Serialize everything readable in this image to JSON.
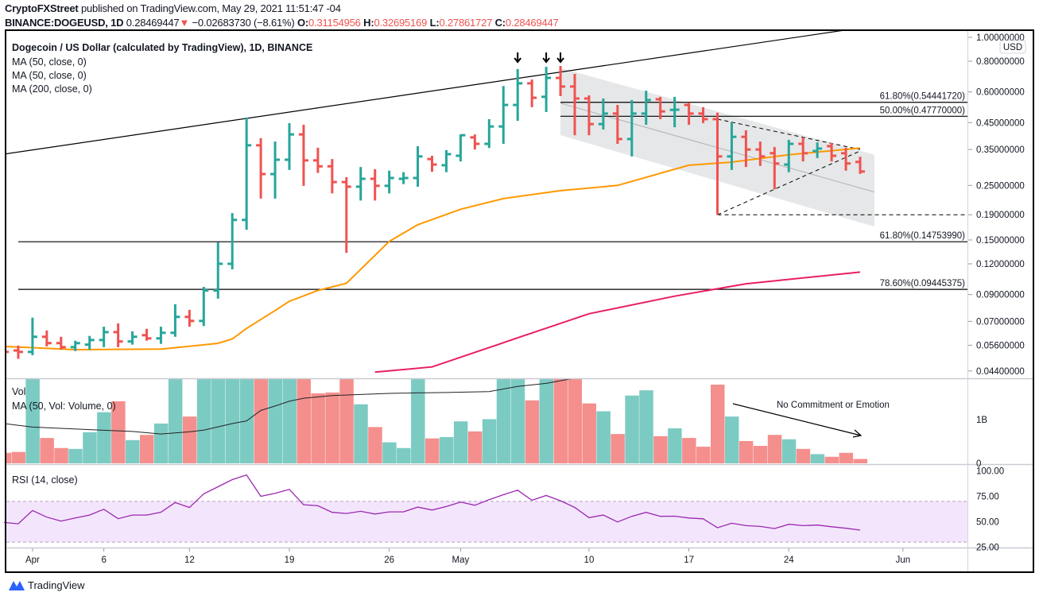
{
  "header": {
    "publisher": "CryptoFXStreet",
    "published_text": " published on TradingView.com, May 29, 2021 11:51:47 -04",
    "symbol": "BINANCE:DOGEUSD, 1D",
    "last": "0.28469447",
    "change": "−0.02683730 (−8.61%)",
    "o_label": "O:",
    "o": "0.31154956",
    "h_label": "H:",
    "h": "0.32695169",
    "l_label": "L:",
    "l": "0.27861727",
    "c_label": "C:",
    "c": "0.28469447"
  },
  "legend": {
    "title": "Dogecoin / US Dollar (calculated by TradingView), 1D, BINANCE",
    "ma1": "MA (50, close, 0)",
    "ma2": "MA (50, close, 0)",
    "ma3": "MA (200, close, 0)",
    "vol": "Vol",
    "vol_ma": "MA (50, Vol: Volume, 0)",
    "rsi": "RSI (14, close)"
  },
  "currency_badge": "USD",
  "annotation": "No Commitment or Emotion",
  "footer": {
    "brand": "TradingView"
  },
  "colors": {
    "up": "#26a69a",
    "down": "#ef5350",
    "vol_up": "#7ccbc3",
    "vol_down": "#f48f8d",
    "ma50": "#ff9800",
    "ma200": "#e91e63",
    "rsi": "#9c27b0",
    "channel": "#e3e4e6"
  },
  "chart_data": {
    "type": "ohlc",
    "price_scale": "log",
    "price_ticks": [
      "1.00000000",
      "0.80000000",
      "0.60000000",
      "0.45000000",
      "0.35000000",
      "0.25000000",
      "0.19000000",
      "0.15000000",
      "0.12000000",
      "0.09000000",
      "0.07000000",
      "0.05600000",
      "0.04400000"
    ],
    "x_ticks": [
      [
        "2021-04-01",
        "Apr"
      ],
      [
        "2021-04-06",
        "6"
      ],
      [
        "2021-04-12",
        "12"
      ],
      [
        "2021-04-19",
        "19"
      ],
      [
        "2021-04-26",
        "26"
      ],
      [
        "2021-05-01",
        "May"
      ],
      [
        "2021-05-10",
        "10"
      ],
      [
        "2021-05-17",
        "17"
      ],
      [
        "2021-05-24",
        "24"
      ],
      [
        "2021-06-01",
        "Jun"
      ]
    ],
    "dates": [
      "2021-03-30",
      "2021-03-31",
      "2021-04-01",
      "2021-04-02",
      "2021-04-03",
      "2021-04-04",
      "2021-04-05",
      "2021-04-06",
      "2021-04-07",
      "2021-04-08",
      "2021-04-09",
      "2021-04-10",
      "2021-04-11",
      "2021-04-12",
      "2021-04-13",
      "2021-04-14",
      "2021-04-15",
      "2021-04-16",
      "2021-04-17",
      "2021-04-18",
      "2021-04-19",
      "2021-04-20",
      "2021-04-21",
      "2021-04-22",
      "2021-04-23",
      "2021-04-24",
      "2021-04-25",
      "2021-04-26",
      "2021-04-27",
      "2021-04-28",
      "2021-04-29",
      "2021-04-30",
      "2021-05-01",
      "2021-05-02",
      "2021-05-03",
      "2021-05-04",
      "2021-05-05",
      "2021-05-06",
      "2021-05-07",
      "2021-05-08",
      "2021-05-09",
      "2021-05-10",
      "2021-05-11",
      "2021-05-12",
      "2021-05-13",
      "2021-05-14",
      "2021-05-15",
      "2021-05-16",
      "2021-05-17",
      "2021-05-18",
      "2021-05-19",
      "2021-05-20",
      "2021-05-21",
      "2021-05-22",
      "2021-05-23",
      "2021-05-24",
      "2021-05-25",
      "2021-05-26",
      "2021-05-27",
      "2021-05-28",
      "2021-05-29"
    ],
    "ohlc": [
      [
        0.0537,
        0.055,
        0.05,
        0.0526
      ],
      [
        0.0533,
        0.0558,
        0.0493,
        0.0526
      ],
      [
        0.0526,
        0.0725,
        0.051,
        0.0606
      ],
      [
        0.0606,
        0.0643,
        0.0554,
        0.0571
      ],
      [
        0.0571,
        0.0606,
        0.0537,
        0.055
      ],
      [
        0.055,
        0.0584,
        0.053,
        0.0571
      ],
      [
        0.0563,
        0.0611,
        0.0537,
        0.0588
      ],
      [
        0.0588,
        0.0666,
        0.055,
        0.0633
      ],
      [
        0.0633,
        0.0687,
        0.055,
        0.058
      ],
      [
        0.058,
        0.0638,
        0.0563,
        0.0606
      ],
      [
        0.0615,
        0.0653,
        0.0584,
        0.0597
      ],
      [
        0.0597,
        0.0666,
        0.0567,
        0.0629
      ],
      [
        0.0629,
        0.0822,
        0.0606,
        0.073
      ],
      [
        0.073,
        0.078,
        0.0666,
        0.0703
      ],
      [
        0.0703,
        0.0967,
        0.067,
        0.0935
      ],
      [
        0.0935,
        0.147,
        0.0866,
        0.12
      ],
      [
        0.12,
        0.193,
        0.114,
        0.181
      ],
      [
        0.181,
        0.472,
        0.165,
        0.364
      ],
      [
        0.364,
        0.389,
        0.221,
        0.278
      ],
      [
        0.278,
        0.377,
        0.221,
        0.318
      ],
      [
        0.318,
        0.448,
        0.289,
        0.403
      ],
      [
        0.403,
        0.441,
        0.249,
        0.316
      ],
      [
        0.316,
        0.356,
        0.281,
        0.299
      ],
      [
        0.299,
        0.32,
        0.232,
        0.258
      ],
      [
        0.258,
        0.27,
        0.133,
        0.247
      ],
      [
        0.247,
        0.297,
        0.217,
        0.266
      ],
      [
        0.266,
        0.291,
        0.217,
        0.249
      ],
      [
        0.249,
        0.287,
        0.232,
        0.268
      ],
      [
        0.266,
        0.283,
        0.253,
        0.268
      ],
      [
        0.268,
        0.361,
        0.247,
        0.328
      ],
      [
        0.32,
        0.33,
        0.284,
        0.304
      ],
      [
        0.302,
        0.348,
        0.283,
        0.335
      ],
      [
        0.33,
        0.403,
        0.313,
        0.4
      ],
      [
        0.392,
        0.403,
        0.35,
        0.369
      ],
      [
        0.369,
        0.465,
        0.355,
        0.434
      ],
      [
        0.434,
        0.634,
        0.369,
        0.531
      ],
      [
        0.531,
        0.743,
        0.458,
        0.65
      ],
      [
        0.65,
        0.674,
        0.52,
        0.568
      ],
      [
        0.573,
        0.759,
        0.497,
        0.684
      ],
      [
        0.684,
        0.765,
        0.577,
        0.631
      ],
      [
        0.631,
        0.71,
        0.4,
        0.564
      ],
      [
        0.564,
        0.581,
        0.4,
        0.444
      ],
      [
        0.444,
        0.564,
        0.422,
        0.49
      ],
      [
        0.49,
        0.531,
        0.369,
        0.386
      ],
      [
        0.386,
        0.556,
        0.328,
        0.49
      ],
      [
        0.49,
        0.607,
        0.441,
        0.556
      ],
      [
        0.56,
        0.573,
        0.465,
        0.5
      ],
      [
        0.507,
        0.573,
        0.431,
        0.508
      ],
      [
        0.531,
        0.543,
        0.441,
        0.49
      ],
      [
        0.49,
        0.52,
        0.448,
        0.465
      ],
      [
        0.465,
        0.494,
        0.19,
        0.328
      ],
      [
        0.328,
        0.452,
        0.289,
        0.394
      ],
      [
        0.394,
        0.419,
        0.297,
        0.35
      ],
      [
        0.35,
        0.377,
        0.3,
        0.328
      ],
      [
        0.338,
        0.358,
        0.241,
        0.307
      ],
      [
        0.304,
        0.383,
        0.283,
        0.369
      ],
      [
        0.369,
        0.392,
        0.313,
        0.338
      ],
      [
        0.345,
        0.374,
        0.323,
        0.353
      ],
      [
        0.361,
        0.372,
        0.313,
        0.33
      ],
      [
        0.338,
        0.356,
        0.287,
        0.307
      ],
      [
        0.31154956,
        0.32695169,
        0.27861727,
        0.28469447
      ]
    ],
    "volume_ticks": [
      "1B",
      "0"
    ],
    "volume_B": [
      0.24,
      0.26,
      2.5,
      0.58,
      0.35,
      0.33,
      0.71,
      1.17,
      1.42,
      0.53,
      0.65,
      0.91,
      2.5,
      1.07,
      3,
      4,
      3.5,
      6,
      5,
      3,
      4.5,
      3.5,
      1.6,
      1.62,
      2.5,
      1.35,
      0.83,
      0.48,
      0.35,
      2.2,
      0.57,
      0.6,
      0.96,
      0.73,
      1.01,
      2.5,
      3,
      1.44,
      3,
      3.5,
      2.5,
      1.37,
      1.19,
      0.67,
      1.55,
      1.67,
      0.62,
      0.8,
      0.58,
      0.38,
      1.8,
      1.07,
      0.51,
      0.4,
      0.65,
      0.55,
      0.33,
      0.21,
      0.15,
      0.24,
      0.1
    ],
    "volume_ma_B": [
      [
        "2021-03-30",
        0.91
      ],
      [
        "2021-04-01",
        0.83
      ],
      [
        "2021-04-05",
        0.77
      ],
      [
        "2021-04-08",
        0.73
      ],
      [
        "2021-04-10",
        0.67
      ],
      [
        "2021-04-12",
        0.72
      ],
      [
        "2021-04-13",
        0.76
      ],
      [
        "2021-04-15",
        0.91
      ],
      [
        "2021-04-16",
        0.97
      ],
      [
        "2021-04-17",
        1.21
      ],
      [
        "2021-04-18",
        1.31
      ],
      [
        "2021-04-19",
        1.42
      ],
      [
        "2021-04-20",
        1.49
      ],
      [
        "2021-04-22",
        1.55
      ],
      [
        "2021-04-26",
        1.6
      ],
      [
        "2021-04-28",
        1.61
      ],
      [
        "2021-04-30",
        1.62
      ],
      [
        "2021-05-03",
        1.64
      ],
      [
        "2021-05-05",
        1.76
      ],
      [
        "2021-05-07",
        1.83
      ],
      [
        "2021-05-09",
        1.95
      ]
    ],
    "ma50": [
      [
        "2021-03-30",
        0.0554
      ],
      [
        "2021-04-04",
        0.0537
      ],
      [
        "2021-04-10",
        0.054
      ],
      [
        "2021-04-12",
        0.0554
      ],
      [
        "2021-04-14",
        0.057
      ],
      [
        "2021-04-15",
        0.0594
      ],
      [
        "2021-04-16",
        0.0655
      ],
      [
        "2021-04-18",
        0.0775
      ],
      [
        "2021-04-19",
        0.0845
      ],
      [
        "2021-04-21",
        0.0935
      ],
      [
        "2021-04-23",
        0.1
      ],
      [
        "2021-04-26",
        0.148
      ],
      [
        "2021-04-28",
        0.173
      ],
      [
        "2021-05-01",
        0.2
      ],
      [
        "2021-05-04",
        0.221
      ],
      [
        "2021-05-08",
        0.238
      ],
      [
        "2021-05-12",
        0.25
      ],
      [
        "2021-05-17",
        0.302
      ],
      [
        "2021-05-20",
        0.311
      ],
      [
        "2021-05-24",
        0.333
      ],
      [
        "2021-05-29",
        0.355
      ]
    ],
    "ma200": [
      [
        "2021-04-25",
        0.0435
      ],
      [
        "2021-04-29",
        0.0457
      ],
      [
        "2021-05-05",
        0.06
      ],
      [
        "2021-05-10",
        0.0752
      ],
      [
        "2021-05-16",
        0.0886
      ],
      [
        "2021-05-21",
        0.0995
      ],
      [
        "2021-05-29",
        0.111
      ]
    ],
    "fib_levels": [
      {
        "label": "61.80%(0.54441720)",
        "price": 0.5444172,
        "from": "2021-05-08"
      },
      {
        "label": "50.00%(0.47770000)",
        "price": 0.4777,
        "from": "2021-05-08"
      },
      {
        "label": "61.80%(0.14753990)",
        "price": 0.1475399,
        "from": "2021-03-31"
      },
      {
        "label": "78.60%(0.09445375)",
        "price": 0.09445375,
        "from": "2021-03-31"
      }
    ],
    "trendline": [
      [
        "2021-03-30",
        0.335
      ],
      [
        "2021-05-26",
        1.03
      ]
    ],
    "channel": {
      "from": "2021-05-08",
      "to": "2021-05-30",
      "top": [
        0.75,
        0.333
      ],
      "mid": [
        0.54,
        0.235
      ],
      "bottom": [
        0.4,
        0.17
      ]
    },
    "triangle": {
      "from": "2021-05-19",
      "to": "2021-05-29",
      "upper": [
        0.465,
        0.35
      ],
      "lower": [
        0.19,
        0.345
      ]
    },
    "support_dashed": {
      "from": "2021-05-19",
      "price": 0.19
    },
    "top_arrows": [
      "2021-05-05",
      "2021-05-07",
      "2021-05-08"
    ],
    "rsi_ticks": [
      "100.00",
      "75.00",
      "50.00",
      "25.00"
    ],
    "rsi_band": [
      30,
      70
    ],
    "rsi": [
      49.3,
      48,
      61,
      54.5,
      50.6,
      53.7,
      56.6,
      62.3,
      53,
      56.6,
      56.6,
      59.4,
      68.8,
      64,
      77.4,
      84.4,
      91.4,
      96,
      75,
      77.9,
      81.8,
      66.7,
      65.7,
      59.2,
      58.1,
      60.2,
      57.6,
      59.7,
      59.7,
      64.4,
      61.5,
      64.9,
      69.3,
      66.2,
      71.7,
      76.6,
      81,
      71.1,
      75.8,
      70.6,
      64.1,
      54,
      56.6,
      49.8,
      55.3,
      59.2,
      55.3,
      55.5,
      53.7,
      52.9,
      44.1,
      48.5,
      46.2,
      45.4,
      43.3,
      47.5,
      46.2,
      46.7,
      45.1,
      43.6,
      41.8
    ]
  }
}
